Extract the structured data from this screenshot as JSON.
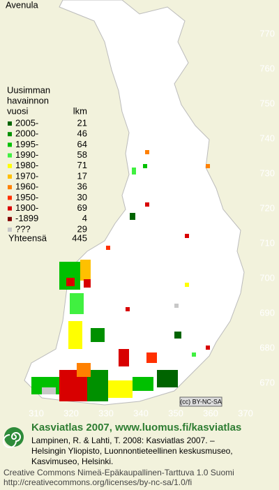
{
  "title": "Avenula",
  "legend": {
    "header": [
      "Uusimman",
      "havainnon",
      "vuosi"
    ],
    "count_header": "lkm",
    "items": [
      {
        "label": "2005-",
        "count": 21,
        "color": "#006400"
      },
      {
        "label": "2000-",
        "count": 46,
        "color": "#009000"
      },
      {
        "label": "1995-",
        "count": 64,
        "color": "#00c000"
      },
      {
        "label": "1990-",
        "count": 58,
        "color": "#40f040"
      },
      {
        "label": "1980-",
        "count": 71,
        "color": "#ffff00"
      },
      {
        "label": "1970-",
        "count": 17,
        "color": "#ffc000"
      },
      {
        "label": "1960-",
        "count": 36,
        "color": "#ff8000"
      },
      {
        "label": "1950-",
        "count": 30,
        "color": "#ff3000"
      },
      {
        "label": "1900-",
        "count": 69,
        "color": "#d80000"
      },
      {
        "label": "-1899",
        "count": 4,
        "color": "#800000"
      },
      {
        "label": "???",
        "count": 29,
        "color": "#c8c8c8"
      }
    ],
    "total_label": "Yhteensä",
    "total": 445
  },
  "grid": {
    "y_labels": [
      770,
      760,
      750,
      740,
      730,
      720,
      710,
      700,
      690,
      680,
      670
    ],
    "x_labels": [
      310,
      320,
      330,
      340,
      350,
      360,
      370
    ]
  },
  "license_badge": "(cc) BY-NC-SA",
  "footer": {
    "heading": "Kasviatlas 2007, www.luomus.fi/kasviatlas",
    "citation": [
      "Lampinen, R. & Lahti, T. 2008: Kasviatlas 2007. –",
      "Helsingin Yliopisto, Luonnontieteellinen keskusmuseo,",
      "Kasvimuseo, Helsinki."
    ],
    "license": [
      "Creative Commons Nimeä-Epäkaupallinen-Tarttuva 1.0 Suomi",
      "http://creativecommons.org/licenses/by-nc-sa/1.0/fi"
    ]
  }
}
